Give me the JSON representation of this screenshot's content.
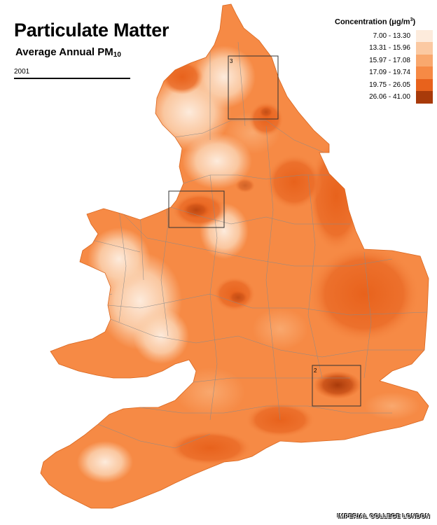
{
  "title": "Particulate Matter",
  "subtitle": "Average Annual PM",
  "subtitle_sub": "10",
  "year": "2001",
  "legend": {
    "title": "Concentration (μg/m",
    "title_sup": "3",
    "title_close": ")",
    "classes": [
      {
        "label": "7.00 - 13.30",
        "color": "#fdebdc"
      },
      {
        "label": "13.31 - 15.96",
        "color": "#fbc9a2"
      },
      {
        "label": "15.97 - 17.08",
        "color": "#f9a86e"
      },
      {
        "label": "17.09 - 19.74",
        "color": "#f68a45"
      },
      {
        "label": "19.75 - 26.05",
        "color": "#e8621c"
      },
      {
        "label": "26.06 - 41.00",
        "color": "#a83a0a"
      }
    ]
  },
  "insets": [
    {
      "label": "3"
    },
    {
      "label": ""
    },
    {
      "label": "2"
    }
  ],
  "credit": "IMPERIAL COLLEGE LONDON"
}
